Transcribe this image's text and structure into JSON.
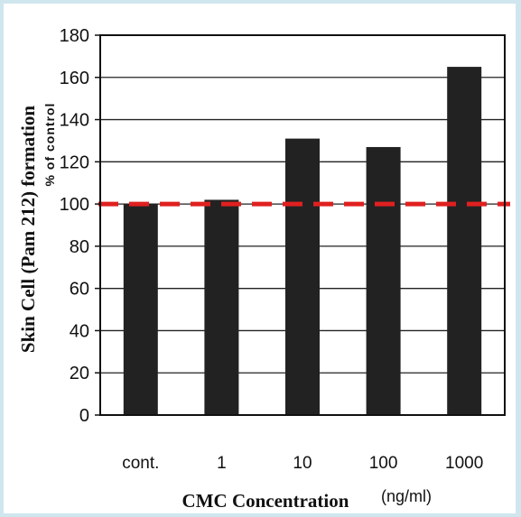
{
  "chart_data": {
    "type": "bar",
    "categories": [
      "cont.",
      "1",
      "10",
      "100",
      "1000"
    ],
    "values": [
      100,
      102,
      131,
      127,
      165
    ],
    "ylim": [
      0,
      180
    ],
    "yticks": [
      "0",
      "20",
      "40",
      "60",
      "80",
      "100",
      "120",
      "140",
      "160",
      "180"
    ],
    "ylabel": "Skin Cell (Pam 212) formation",
    "ylabel_sub": "% of control",
    "xlabel": "CMC Concentration",
    "xlabel_unit": "(ng/ml)",
    "grid": true,
    "reference_line": {
      "value": 100,
      "color": "#e02020",
      "style": "dashed"
    },
    "bar_color": "#222222"
  }
}
